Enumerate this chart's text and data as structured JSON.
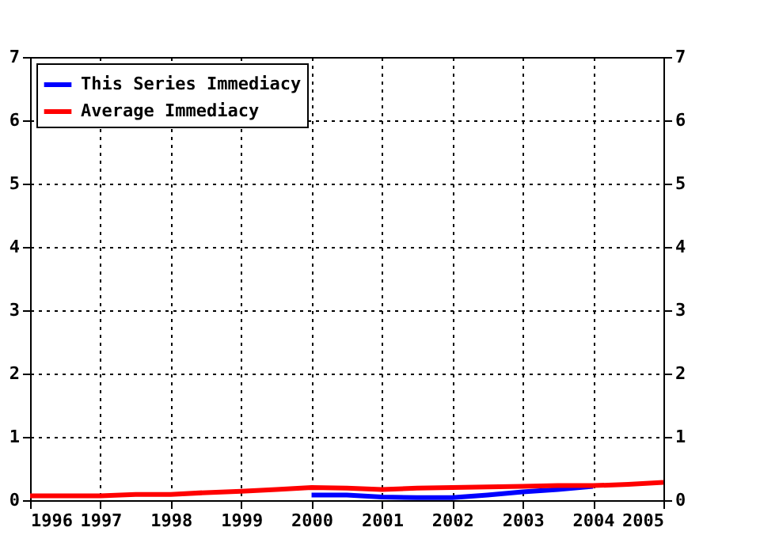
{
  "chart_data": {
    "type": "line",
    "xlim": [
      1996,
      2005
    ],
    "xticks": [
      1996,
      1997,
      1998,
      1999,
      2000,
      2001,
      2002,
      2003,
      2004,
      2005
    ],
    "ylim": [
      0,
      7
    ],
    "yticks": [
      0,
      1,
      2,
      3,
      4,
      5,
      6,
      7
    ],
    "y2lim": [
      0,
      7
    ],
    "y2ticks": [
      0,
      1,
      2,
      3,
      4,
      5,
      6,
      7
    ],
    "grid": true,
    "legend": "top left",
    "line_style": "solid",
    "marker": "none",
    "series": [
      {
        "name": "This Series Immediacy",
        "color": "#0000ff",
        "x": [
          2000,
          2000.5,
          2001,
          2001.5,
          2002,
          2002.5,
          2003,
          2003.5,
          2004
        ],
        "values": [
          0.08,
          0.08,
          0.05,
          0.04,
          0.04,
          0.08,
          0.13,
          0.17,
          0.22
        ]
      },
      {
        "name": "Average Immediacy",
        "color": "#ff0000",
        "x": [
          1996,
          1997,
          1997.5,
          1998,
          1998.5,
          1999,
          1999.5,
          2000,
          2000.5,
          2001,
          2001.5,
          2002,
          2002.5,
          2003,
          2003.5,
          2004,
          2004.5,
          2005
        ],
        "values": [
          0.07,
          0.07,
          0.09,
          0.09,
          0.12,
          0.14,
          0.17,
          0.2,
          0.19,
          0.17,
          0.19,
          0.2,
          0.21,
          0.22,
          0.23,
          0.23,
          0.25,
          0.28
        ]
      }
    ]
  }
}
